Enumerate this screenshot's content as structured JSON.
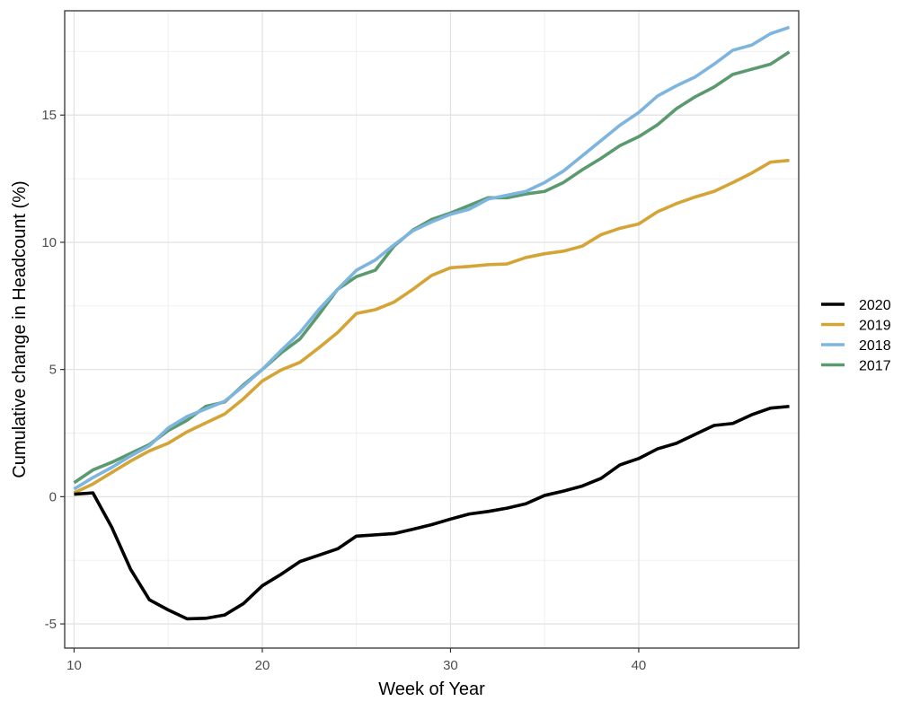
{
  "chart_data": {
    "type": "line",
    "title": "",
    "xlabel": "Week of Year",
    "ylabel": "Cumulative change in Headcount (%)",
    "xlim": [
      9.5,
      48.5
    ],
    "ylim": [
      -5.95,
      19.1
    ],
    "x_ticks": [
      10,
      20,
      30,
      40
    ],
    "y_ticks": [
      -5,
      0,
      5,
      10,
      15
    ],
    "x_tick_labels": [
      "10",
      "20",
      "30",
      "40"
    ],
    "y_tick_labels": [
      "-5",
      "0",
      "5",
      "10",
      "15"
    ],
    "grid": true,
    "legend_position": "right",
    "x": [
      10,
      11,
      12,
      13,
      14,
      15,
      16,
      17,
      18,
      19,
      20,
      21,
      22,
      23,
      24,
      25,
      26,
      27,
      28,
      29,
      30,
      31,
      32,
      33,
      34,
      35,
      36,
      37,
      38,
      39,
      40,
      41,
      42,
      43,
      44,
      45,
      46,
      47,
      48
    ],
    "series": [
      {
        "name": "2020",
        "color": "#000000",
        "values": [
          0.1,
          0.15,
          -1.2,
          -2.85,
          -4.05,
          -4.45,
          -4.8,
          -4.78,
          -4.65,
          -4.2,
          -3.5,
          -3.05,
          -2.55,
          -2.3,
          -2.05,
          -1.55,
          -1.5,
          -1.45,
          -1.28,
          -1.1,
          -0.88,
          -0.68,
          -0.58,
          -0.45,
          -0.28,
          0.05,
          0.22,
          0.42,
          0.72,
          1.25,
          1.5,
          1.88,
          2.1,
          2.45,
          2.8,
          2.88,
          3.22,
          3.48,
          3.55
        ]
      },
      {
        "name": "2019",
        "color": "#d4a437",
        "values": [
          0.15,
          0.5,
          0.95,
          1.4,
          1.8,
          2.1,
          2.55,
          2.9,
          3.25,
          3.85,
          4.55,
          4.98,
          5.28,
          5.85,
          6.45,
          7.2,
          7.35,
          7.65,
          8.15,
          8.7,
          9.0,
          9.05,
          9.12,
          9.15,
          9.4,
          9.55,
          9.65,
          9.85,
          10.3,
          10.55,
          10.72,
          11.2,
          11.52,
          11.78,
          12.0,
          12.35,
          12.72,
          13.15,
          13.22
        ]
      },
      {
        "name": "2018",
        "color": "#7db5de",
        "values": [
          0.3,
          0.75,
          1.15,
          1.6,
          2.0,
          2.7,
          3.15,
          3.45,
          3.75,
          4.35,
          5.0,
          5.75,
          6.45,
          7.35,
          8.15,
          8.9,
          9.3,
          9.9,
          10.45,
          10.8,
          11.1,
          11.3,
          11.7,
          11.85,
          12.0,
          12.35,
          12.8,
          13.4,
          14.0,
          14.6,
          15.1,
          15.75,
          16.15,
          16.5,
          17.0,
          17.55,
          17.75,
          18.2,
          18.45
        ]
      },
      {
        "name": "2017",
        "color": "#5a9a6e",
        "values": [
          0.55,
          1.05,
          1.35,
          1.7,
          2.05,
          2.6,
          3.0,
          3.55,
          3.72,
          4.4,
          5.0,
          5.65,
          6.2,
          7.15,
          8.15,
          8.65,
          8.9,
          9.85,
          10.48,
          10.9,
          11.15,
          11.45,
          11.75,
          11.75,
          11.9,
          12.0,
          12.35,
          12.85,
          13.3,
          13.8,
          14.15,
          14.62,
          15.25,
          15.72,
          16.1,
          16.6,
          16.8,
          17.0,
          17.48
        ]
      }
    ]
  }
}
